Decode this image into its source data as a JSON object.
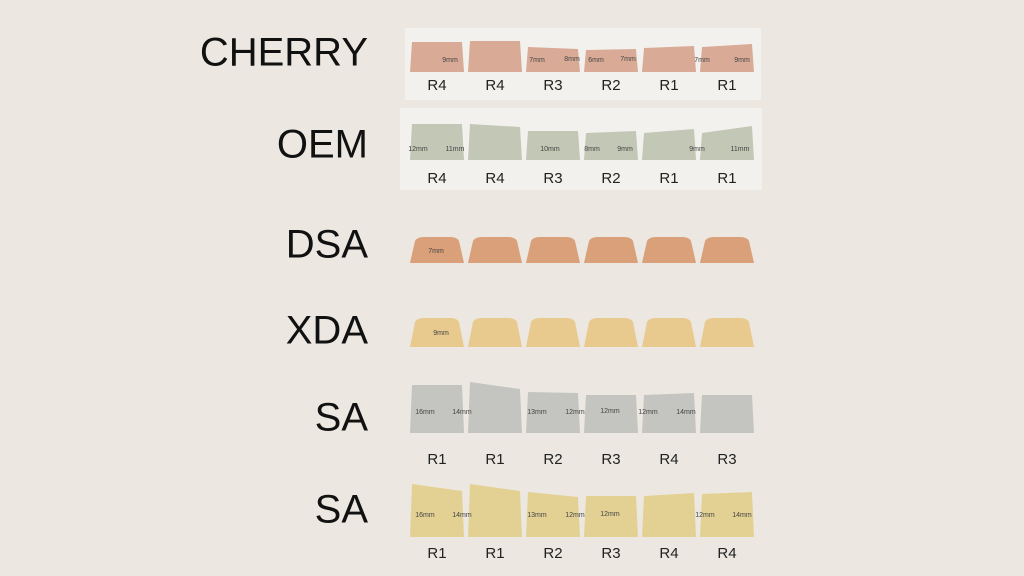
{
  "profiles": [
    {
      "name": "CHERRY",
      "rows": [
        "R4",
        "R4",
        "R3",
        "R2",
        "R1",
        "R1"
      ],
      "measurements": [
        "9mm",
        "7mm",
        "8mm",
        "6mm",
        "7mm",
        "7mm",
        "9mm"
      ]
    },
    {
      "name": "OEM",
      "rows": [
        "R4",
        "R4",
        "R3",
        "R2",
        "R1",
        "R1"
      ],
      "measurements": [
        "12mm",
        "11mm",
        "10mm",
        "8mm",
        "9mm",
        "9mm",
        "11mm"
      ]
    },
    {
      "name": "DSA",
      "rows": [],
      "measurements": [
        "7mm"
      ]
    },
    {
      "name": "XDA",
      "rows": [],
      "measurements": [
        "9mm"
      ]
    },
    {
      "name": "SA",
      "rows": [
        "R1",
        "R1",
        "R2",
        "R3",
        "R4",
        "R3"
      ],
      "measurements": [
        "16mm",
        "14mm",
        "13mm",
        "12mm",
        "12mm",
        "12mm",
        "14mm"
      ]
    },
    {
      "name": "SA",
      "rows": [
        "R1",
        "R1",
        "R2",
        "R3",
        "R4",
        "R4"
      ],
      "measurements": [
        "16mm",
        "14mm",
        "13mm",
        "12mm",
        "12mm",
        "12mm",
        "14mm"
      ]
    }
  ]
}
